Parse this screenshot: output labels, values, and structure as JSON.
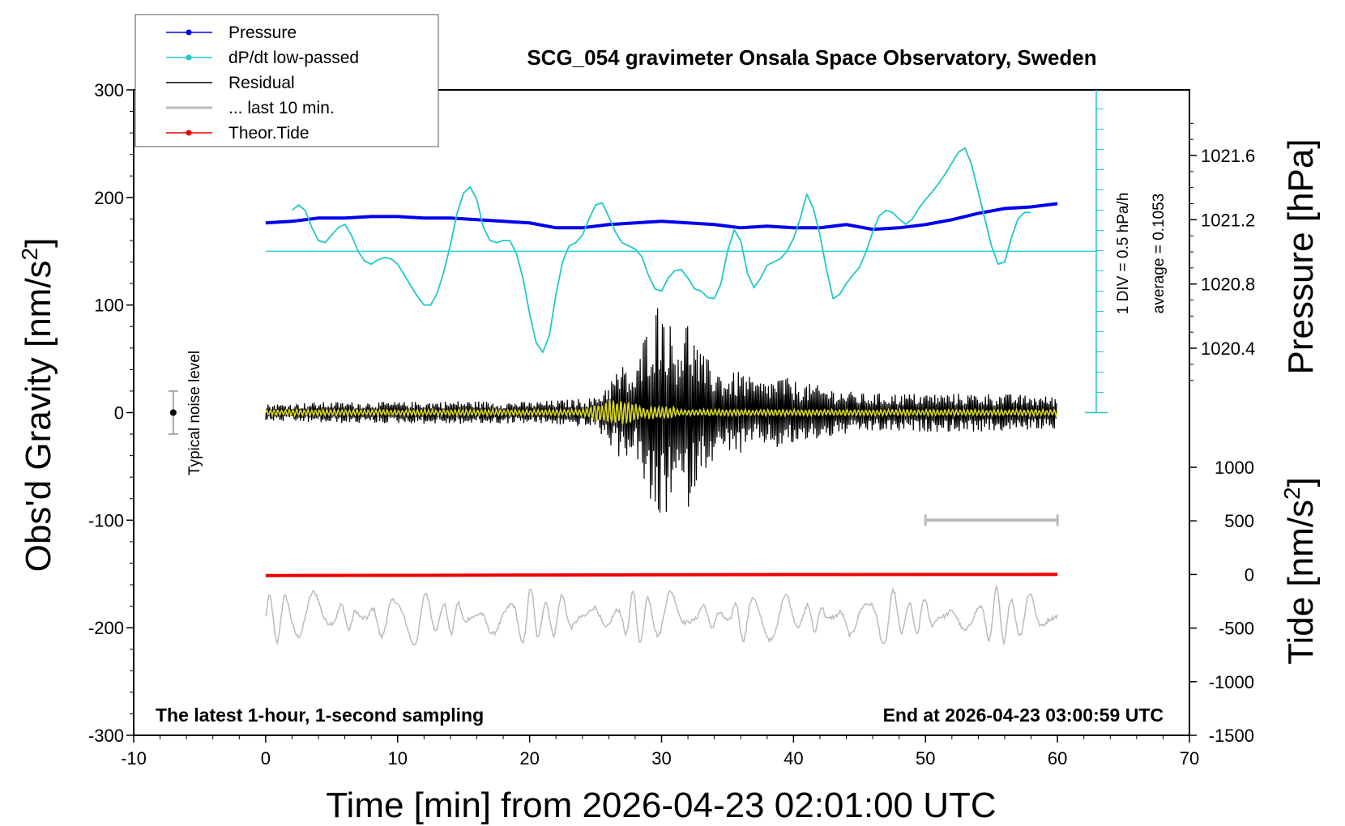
{
  "chart_data": {
    "type": "line",
    "title": "SCG_054 gravimeter Onsala Space Observatory, Sweden",
    "xlabel": "Time [min] from 2026-04-23 02:01:00 UTC",
    "ylabel_left_main": "Obs'd Gravity [nm/s",
    "ylabel_left_sup": "2",
    "ylabel_left_end": "]",
    "ylabel_right_top": "Pressure [hPa]",
    "ylabel_right_bottom_main": "Tide [nm/s",
    "ylabel_right_bottom_sup": "2",
    "ylabel_right_bottom_end": "]",
    "xlim": [
      -10,
      70
    ],
    "ylim": [
      -300,
      300
    ],
    "x_ticks": [
      "-10",
      "0",
      "10",
      "20",
      "30",
      "40",
      "50",
      "60",
      "70"
    ],
    "y_ticks": [
      "300",
      "200",
      "100",
      "0",
      "-100",
      "-200",
      "-300"
    ],
    "pressure_ticks": [
      "1021.6",
      "1021.2",
      "1020.8",
      "1020.4"
    ],
    "tide_ticks": [
      "1000",
      "500",
      "0",
      "-500",
      "-1000",
      "-1500"
    ],
    "note_left": "The latest 1-hour, 1-second sampling",
    "note_right": "End at 2026-04-23 03:00:59 UTC",
    "noise_label": "Typical noise level",
    "dpdt_scale": "1 DIV = 0.5 hPa/h",
    "dpdt_average": "average = 0.1053",
    "legend": [
      {
        "label": "Pressure",
        "color": "#0000ee",
        "marker": true
      },
      {
        "label": "dP/dt low-passed",
        "color": "#20c8c8",
        "marker": true
      },
      {
        "label": "Residual",
        "color": "#000000",
        "marker": false
      },
      {
        "label": "... last 10 min.",
        "color": "#bbbbbb",
        "marker": false
      },
      {
        "label": "Theor.Tide",
        "color": "#ee0000",
        "marker": true
      }
    ],
    "series": [
      {
        "name": "Pressure",
        "color": "#0000ee",
        "axis": "pressure_hPa",
        "x": [
          0,
          2,
          4,
          6,
          8,
          10,
          12,
          14,
          16,
          18,
          20,
          22,
          24,
          26,
          28,
          30,
          32,
          34,
          36,
          38,
          40,
          42,
          44,
          46,
          48,
          50,
          52,
          54,
          56,
          58,
          60
        ],
        "y": [
          1021.18,
          1021.19,
          1021.21,
          1021.21,
          1021.22,
          1021.22,
          1021.21,
          1021.21,
          1021.2,
          1021.19,
          1021.18,
          1021.15,
          1021.15,
          1021.17,
          1021.18,
          1021.19,
          1021.18,
          1021.17,
          1021.15,
          1021.16,
          1021.15,
          1021.15,
          1021.17,
          1021.14,
          1021.15,
          1021.17,
          1021.2,
          1021.24,
          1021.27,
          1021.28,
          1021.3
        ]
      },
      {
        "name": "dP/dt low-passed",
        "color": "#20c8c8",
        "axis": "gravity",
        "x": [
          2.0,
          2.5,
          3.0,
          3.5,
          4.0,
          4.5,
          5.0,
          5.5,
          6.0,
          6.5,
          7.0,
          7.5,
          8.0,
          8.5,
          9.0,
          9.5,
          10.0,
          10.5,
          11.0,
          11.5,
          12.0,
          12.5,
          13.0,
          13.5,
          14.0,
          14.5,
          15.0,
          15.5,
          16.0,
          16.5,
          17.0,
          17.5,
          18.0,
          18.5,
          19.0,
          19.5,
          20.0,
          20.5,
          21.0,
          21.5,
          22.0,
          22.5,
          23.0,
          23.5,
          24.0,
          24.5,
          25.0,
          25.5,
          26.0,
          26.5,
          27.0,
          27.5,
          28.0,
          28.5,
          29.0,
          29.5,
          30.0,
          30.5,
          31.0,
          31.5,
          32.0,
          32.5,
          33.0,
          33.5,
          34.0,
          34.5,
          35.0,
          35.5,
          36.0,
          36.5,
          37.0,
          37.5,
          38.0,
          38.5,
          39.0,
          39.5,
          40.0,
          40.5,
          41.0,
          41.5,
          42.0,
          42.5,
          43.0,
          43.5,
          44.0,
          44.5,
          45.0,
          45.5,
          46.0,
          46.5,
          47.0,
          47.5,
          48.0,
          48.5,
          49.0,
          49.5,
          50.0,
          50.5,
          51.0,
          51.5,
          52.0,
          52.5,
          53.0,
          53.5,
          54.0,
          54.5,
          55.0,
          55.5,
          56.0,
          56.5,
          57.0,
          57.5,
          58.0
        ],
        "y": [
          188,
          193,
          188,
          172,
          160,
          158,
          165,
          172,
          175,
          165,
          150,
          141,
          138,
          142,
          144,
          143,
          138,
          128,
          118,
          108,
          100,
          100,
          111,
          131,
          156,
          185,
          204,
          210,
          198,
          172,
          160,
          158,
          160,
          160,
          148,
          125,
          92,
          65,
          56,
          72,
          110,
          140,
          155,
          158,
          165,
          180,
          193,
          195,
          182,
          168,
          158,
          155,
          152,
          145,
          128,
          115,
          113,
          125,
          132,
          133,
          125,
          115,
          113,
          107,
          106,
          120,
          150,
          170,
          160,
          130,
          116,
          125,
          137,
          140,
          143,
          150,
          162,
          180,
          203,
          190,
          165,
          133,
          106,
          110,
          120,
          128,
          135,
          150,
          168,
          183,
          188,
          186,
          180,
          175,
          180,
          190,
          198,
          205,
          213,
          222,
          232,
          242,
          246,
          230,
          205,
          180,
          155,
          138,
          140,
          162,
          180,
          186,
          186
        ]
      },
      {
        "name": "Theor.Tide",
        "color": "#ee0000",
        "axis": "tide",
        "x": [
          0,
          10,
          20,
          30,
          40,
          50,
          60
        ],
        "y": [
          -10,
          -8,
          -5,
          -3,
          -1,
          0,
          1
        ]
      }
    ],
    "residual_envelope": {
      "x": [
        0,
        5,
        10,
        15,
        20,
        25,
        26,
        27,
        28,
        29,
        30,
        31,
        32,
        33,
        34,
        35,
        36,
        37,
        38,
        39,
        40,
        42,
        45,
        50,
        55,
        60
      ],
      "amplitude": [
        8,
        10,
        10,
        11,
        10,
        14,
        30,
        45,
        35,
        90,
        110,
        70,
        90,
        55,
        45,
        35,
        40,
        30,
        30,
        35,
        30,
        25,
        18,
        18,
        18,
        15
      ]
    },
    "noise_range": [
      -20,
      20
    ],
    "last10_bar": [
      50,
      60
    ]
  }
}
